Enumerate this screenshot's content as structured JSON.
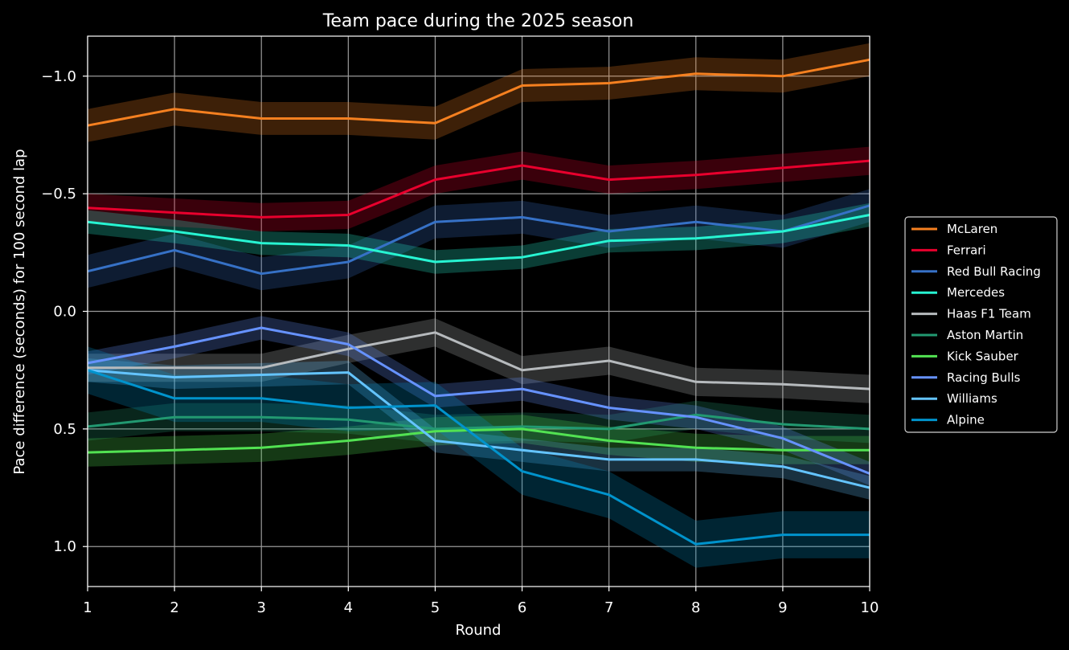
{
  "chart_data": {
    "type": "line",
    "title": "Team pace during the 2025 season",
    "xlabel": "Round",
    "ylabel": "Pace difference (seconds) for 100 second lap",
    "x": [
      1,
      2,
      3,
      4,
      5,
      6,
      7,
      8,
      9,
      10
    ],
    "xlim": [
      1,
      10
    ],
    "ylim": [
      1.17,
      -1.17
    ],
    "y_inverted": true,
    "xticks": [
      "1",
      "2",
      "3",
      "4",
      "5",
      "6",
      "7",
      "8",
      "9",
      "10"
    ],
    "yticks": [
      -1.0,
      -0.5,
      0.0,
      0.5,
      1.0
    ],
    "ytick_labels": [
      "−1.0",
      "−0.5",
      "0.0",
      "0.5",
      "1.0"
    ],
    "grid": true,
    "legend_position": "right",
    "series": [
      {
        "name": "McLaren",
        "color": "#f58020",
        "band": 0.07,
        "values": [
          -0.79,
          -0.86,
          -0.82,
          -0.82,
          -0.8,
          -0.96,
          -0.97,
          -1.01,
          -1.0,
          -1.07
        ]
      },
      {
        "name": "Ferrari",
        "color": "#e8002d",
        "band": 0.06,
        "values": [
          -0.44,
          -0.42,
          -0.4,
          -0.41,
          -0.56,
          -0.62,
          -0.56,
          -0.58,
          -0.61,
          -0.64
        ]
      },
      {
        "name": "Red Bull Racing",
        "color": "#3671c6",
        "band": 0.07,
        "values": [
          -0.17,
          -0.26,
          -0.16,
          -0.21,
          -0.38,
          -0.4,
          -0.34,
          -0.38,
          -0.34,
          -0.45
        ]
      },
      {
        "name": "Mercedes",
        "color": "#27f4d2",
        "band": 0.05,
        "values": [
          -0.38,
          -0.34,
          -0.29,
          -0.28,
          -0.21,
          -0.23,
          -0.3,
          -0.31,
          -0.34,
          -0.41
        ]
      },
      {
        "name": "Haas F1 Team",
        "color": "#b6babd",
        "band": 0.06,
        "values": [
          0.24,
          0.24,
          0.24,
          0.16,
          0.09,
          0.25,
          0.21,
          0.3,
          0.31,
          0.33
        ]
      },
      {
        "name": "Aston Martin",
        "color": "#229971",
        "band": 0.06,
        "values": [
          0.49,
          0.45,
          0.45,
          0.46,
          0.5,
          0.49,
          0.5,
          0.44,
          0.48,
          0.5
        ]
      },
      {
        "name": "Kick Sauber",
        "color": "#52e252",
        "band": 0.06,
        "values": [
          0.6,
          0.59,
          0.58,
          0.55,
          0.51,
          0.5,
          0.55,
          0.58,
          0.59,
          0.59
        ]
      },
      {
        "name": "Racing Bulls",
        "color": "#6692ff",
        "band": 0.05,
        "values": [
          0.22,
          0.15,
          0.07,
          0.14,
          0.36,
          0.33,
          0.41,
          0.45,
          0.54,
          0.69
        ]
      },
      {
        "name": "Williams",
        "color": "#64c4ff",
        "band": 0.05,
        "values": [
          0.25,
          0.28,
          0.27,
          0.26,
          0.55,
          0.59,
          0.63,
          0.63,
          0.66,
          0.75
        ]
      },
      {
        "name": "Alpine",
        "color": "#0093cc",
        "band": 0.1,
        "values": [
          0.25,
          0.37,
          0.37,
          0.41,
          0.4,
          0.68,
          0.78,
          0.99,
          0.95,
          0.95
        ]
      }
    ]
  }
}
